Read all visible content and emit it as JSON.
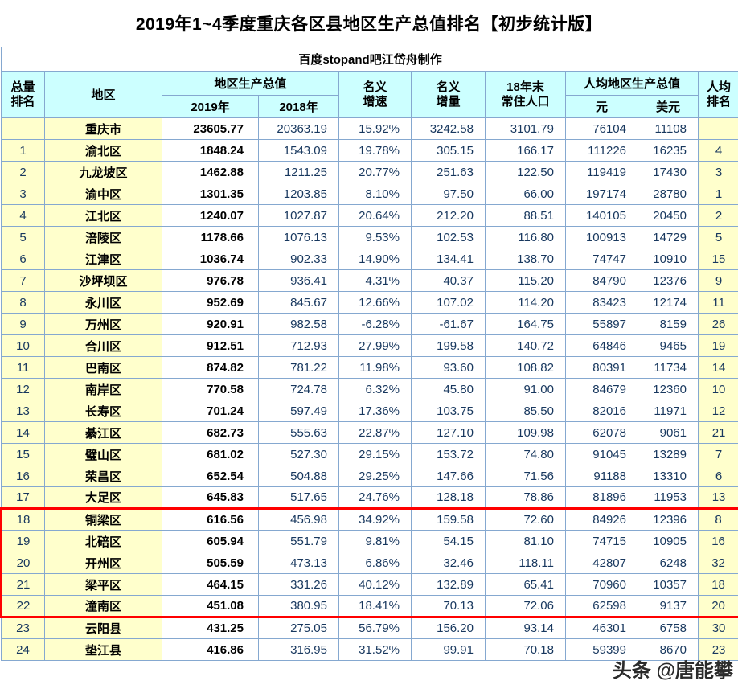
{
  "title": "2019年1~4季度重庆各区县地区生产总值排名【初步统计版】",
  "subtitle": "百度stopand吧江岱舟制作",
  "watermark": "头条 @唐能攀",
  "colors": {
    "highlight": "#ff0000",
    "grid": "#85a8d0",
    "header_bg": "#ccffff",
    "rank_bg": "#ffffcc",
    "number_text": "#17375e"
  },
  "chart_data": {
    "type": "table",
    "title": "2019年1~4季度重庆各区县地区生产总值排名【初步统计版】",
    "headers": {
      "rank": "总量\n排名",
      "region": "地区",
      "gdp_group": "地区生产总值",
      "gdp_2019": "2019年",
      "gdp_2018": "2018年",
      "growth": "名义\n增速",
      "increment": "名义\n增量",
      "population": "18年末\n常住人口",
      "percap_group": "人均地区生产总值",
      "yuan": "元",
      "usd": "美元",
      "percap_rank": "人均\n排名"
    },
    "rows": [
      [
        "",
        "重庆市",
        "23605.77",
        "20363.19",
        "15.92%",
        "3242.58",
        "3101.79",
        "76104",
        "11108",
        ""
      ],
      [
        "1",
        "渝北区",
        "1848.24",
        "1543.09",
        "19.78%",
        "305.15",
        "166.17",
        "111226",
        "16235",
        "4"
      ],
      [
        "2",
        "九龙坡区",
        "1462.88",
        "1211.25",
        "20.77%",
        "251.63",
        "122.50",
        "119419",
        "17430",
        "3"
      ],
      [
        "3",
        "渝中区",
        "1301.35",
        "1203.85",
        "8.10%",
        "97.50",
        "66.00",
        "197174",
        "28780",
        "1"
      ],
      [
        "4",
        "江北区",
        "1240.07",
        "1027.87",
        "20.64%",
        "212.20",
        "88.51",
        "140105",
        "20450",
        "2"
      ],
      [
        "5",
        "涪陵区",
        "1178.66",
        "1076.13",
        "9.53%",
        "102.53",
        "116.80",
        "100913",
        "14729",
        "5"
      ],
      [
        "6",
        "江津区",
        "1036.74",
        "902.33",
        "14.90%",
        "134.41",
        "138.70",
        "74747",
        "10910",
        "15"
      ],
      [
        "7",
        "沙坪坝区",
        "976.78",
        "936.41",
        "4.31%",
        "40.37",
        "115.20",
        "84790",
        "12376",
        "9"
      ],
      [
        "8",
        "永川区",
        "952.69",
        "845.67",
        "12.66%",
        "107.02",
        "114.20",
        "83423",
        "12174",
        "11"
      ],
      [
        "9",
        "万州区",
        "920.91",
        "982.58",
        "-6.28%",
        "-61.67",
        "164.75",
        "55897",
        "8159",
        "26"
      ],
      [
        "10",
        "合川区",
        "912.51",
        "712.93",
        "27.99%",
        "199.58",
        "140.72",
        "64846",
        "9465",
        "19"
      ],
      [
        "11",
        "巴南区",
        "874.82",
        "781.22",
        "11.98%",
        "93.60",
        "108.82",
        "80391",
        "11734",
        "14"
      ],
      [
        "12",
        "南岸区",
        "770.58",
        "724.78",
        "6.32%",
        "45.80",
        "91.00",
        "84679",
        "12360",
        "10"
      ],
      [
        "13",
        "长寿区",
        "701.24",
        "597.49",
        "17.36%",
        "103.75",
        "85.50",
        "82016",
        "11971",
        "12"
      ],
      [
        "14",
        "綦江区",
        "682.73",
        "555.63",
        "22.87%",
        "127.10",
        "109.98",
        "62078",
        "9061",
        "21"
      ],
      [
        "15",
        "璧山区",
        "681.02",
        "527.30",
        "29.15%",
        "153.72",
        "74.80",
        "91045",
        "13289",
        "7"
      ],
      [
        "16",
        "荣昌区",
        "652.54",
        "504.88",
        "29.25%",
        "147.66",
        "71.56",
        "91188",
        "13310",
        "6"
      ],
      [
        "17",
        "大足区",
        "645.83",
        "517.65",
        "24.76%",
        "128.18",
        "78.86",
        "81896",
        "11953",
        "13"
      ],
      [
        "18",
        "铜梁区",
        "616.56",
        "456.98",
        "34.92%",
        "159.58",
        "72.60",
        "84926",
        "12396",
        "8"
      ],
      [
        "19",
        "北碚区",
        "605.94",
        "551.79",
        "9.81%",
        "54.15",
        "81.10",
        "74715",
        "10905",
        "16"
      ],
      [
        "20",
        "开州区",
        "505.59",
        "473.13",
        "6.86%",
        "32.46",
        "118.11",
        "42807",
        "6248",
        "32"
      ],
      [
        "21",
        "梁平区",
        "464.15",
        "331.26",
        "40.12%",
        "132.89",
        "65.41",
        "70960",
        "10357",
        "18"
      ],
      [
        "22",
        "潼南区",
        "451.08",
        "380.95",
        "18.41%",
        "70.13",
        "72.06",
        "62598",
        "9137",
        "20"
      ],
      [
        "23",
        "云阳县",
        "431.25",
        "275.05",
        "56.79%",
        "156.20",
        "93.14",
        "46301",
        "6758",
        "30"
      ],
      [
        "24",
        "垫江县",
        "416.86",
        "316.95",
        "31.52%",
        "99.91",
        "70.18",
        "59399",
        "8670",
        "23"
      ]
    ],
    "highlight": {
      "ranks": [
        "18",
        "19",
        "20",
        "21",
        "22"
      ],
      "style": "red-box"
    }
  }
}
